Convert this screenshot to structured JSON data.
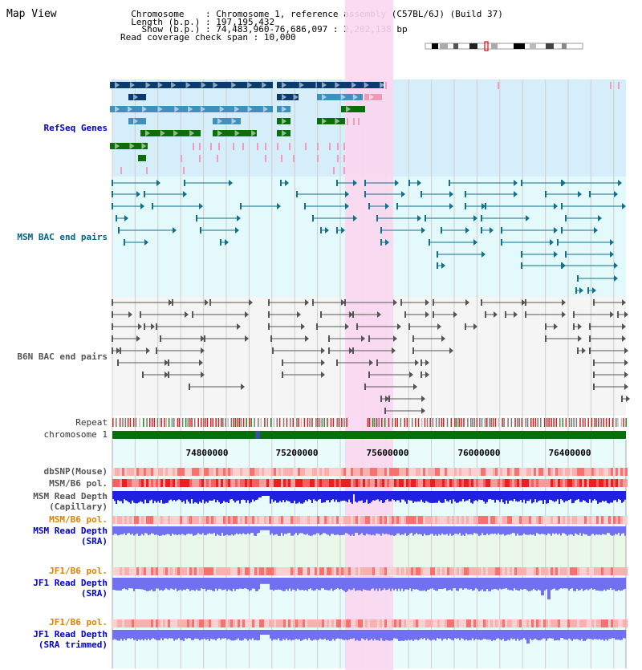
{
  "title": "Map View",
  "header": {
    "chromosome_label": "Chromosome",
    "chromosome_value": "Chromosome 1, reference assembly (C57BL/6J) (Build 37)",
    "length_label": "Length (b.p.)",
    "length_value": "197,195,432",
    "show_label": "Show (b.p.)",
    "show_value": "74,483,960-76,686,097 : 2,202,138 bp",
    "coverage_label": "Read coverage check span",
    "coverage_value": "10,000"
  },
  "tracks": {
    "refseq": "RefSeq Genes",
    "msm_bac": "MSM BAC end pairs",
    "b6n_bac": "B6N BAC end pairs",
    "repeat": "Repeat",
    "chromosome": "chromosome 1",
    "dbsnp": "dbSNP(Mouse)",
    "msm_b6_pol": "MSM/B6 pol.",
    "msm_depth_cap_1": "MSM Read Depth",
    "msm_depth_cap_2": "(Capillary)",
    "msm_b6_pol_2": "MSM/B6 pol.",
    "msm_depth_sra_1": "MSM Read Depth",
    "msm_depth_sra_2": "(SRA)",
    "jf1_b6_pol": "JF1/B6 pol.",
    "jf1_depth_sra_1": "JF1 Read Depth",
    "jf1_depth_sra_2": "(SRA)",
    "jf1_b6_pol_2": "JF1/B6 pol.",
    "jf1_depth_trim_1": "JF1 Read Depth",
    "jf1_depth_trim_2": "(SRA trimmed)"
  },
  "axis": {
    "ticks": [
      "74800000",
      "75200000",
      "75600000",
      "76000000",
      "76400000"
    ]
  },
  "colors": {
    "highlight": "#fbd7f0",
    "refseq_bg": "#d6eefa",
    "msm_bg": "#e3f9fb",
    "b6n_bg": "#f5f5f5",
    "gene_dark": "#0b3a6e",
    "gene_mid": "#3f8fbf",
    "gene_green": "#0a6e0a",
    "chrom_green": "#0a6e0a",
    "depth_blue": "#2020e0",
    "depth_light": "#7070f0"
  }
}
